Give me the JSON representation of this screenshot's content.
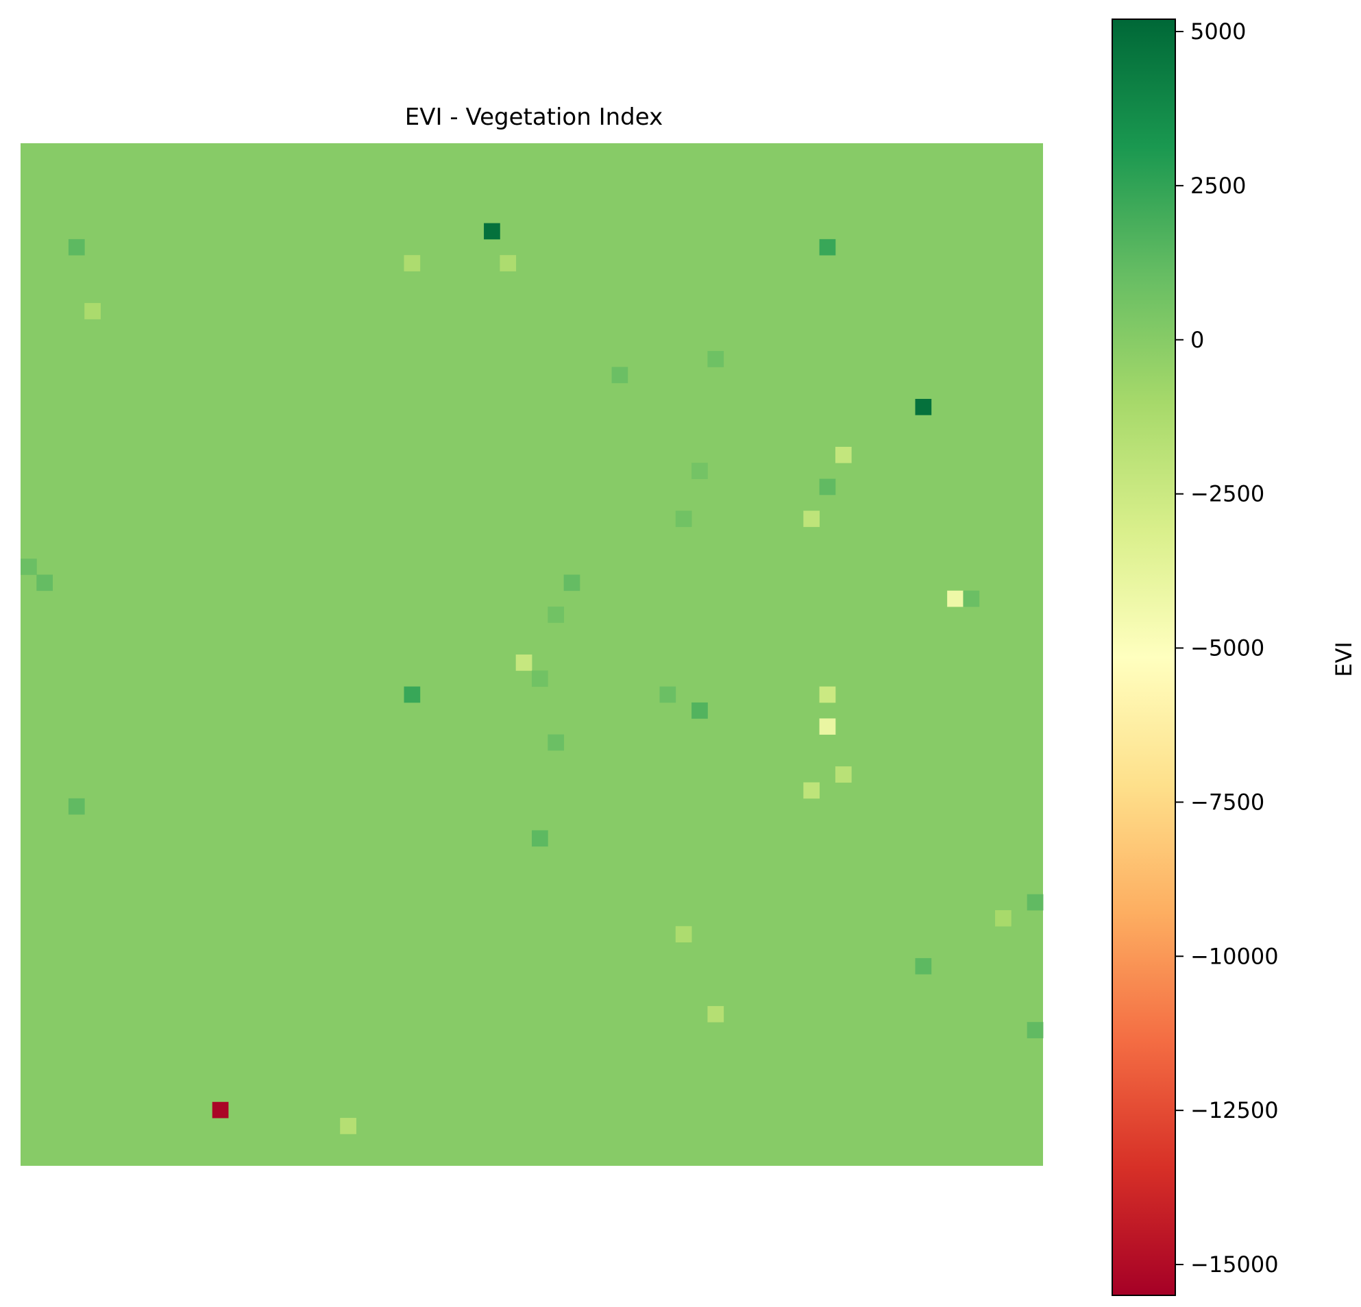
{
  "chart_data": {
    "type": "heatmap",
    "title": "EVI - Vegetation Index",
    "colormap": "RdYlGn",
    "colorbar": {
      "label": "EVI",
      "min": -15500,
      "max": 5200,
      "ticks": [
        5000,
        2500,
        0,
        -2500,
        -5000,
        -7500,
        -10000,
        -12500,
        -15000
      ],
      "tick_labels": [
        "5000",
        "2500",
        "0",
        "−2500",
        "−5000",
        "−7500",
        "−10000",
        "−12500",
        "−15000"
      ]
    },
    "grid": {
      "rows": 64,
      "cols": 64,
      "background_value": 0,
      "cells": [
        {
          "r": 5,
          "c": 29,
          "v": 4800
        },
        {
          "r": 6,
          "c": 50,
          "v": 2300
        },
        {
          "r": 16,
          "c": 56,
          "v": 4800
        },
        {
          "r": 34,
          "c": 24,
          "v": 2300
        },
        {
          "r": 60,
          "c": 12,
          "v": -15300
        },
        {
          "r": 28,
          "c": 58,
          "v": -4200
        },
        {
          "r": 36,
          "c": 50,
          "v": -4000
        },
        {
          "r": 34,
          "c": 50,
          "v": -2500
        },
        {
          "r": 32,
          "c": 31,
          "v": -2300
        },
        {
          "r": 19,
          "c": 51,
          "v": -2200
        },
        {
          "r": 23,
          "c": 49,
          "v": -2000
        },
        {
          "r": 40,
          "c": 49,
          "v": -2000
        },
        {
          "r": 39,
          "c": 51,
          "v": -1800
        },
        {
          "r": 54,
          "c": 43,
          "v": -1600
        },
        {
          "r": 61,
          "c": 20,
          "v": -1600
        },
        {
          "r": 7,
          "c": 24,
          "v": -1300
        },
        {
          "r": 7,
          "c": 30,
          "v": -1300
        },
        {
          "r": 10,
          "c": 4,
          "v": -1200
        },
        {
          "r": 49,
          "c": 41,
          "v": -1300
        },
        {
          "r": 48,
          "c": 61,
          "v": -1100
        },
        {
          "r": 41,
          "c": 3,
          "v": 1200
        },
        {
          "r": 6,
          "c": 3,
          "v": 1300
        },
        {
          "r": 26,
          "c": 0,
          "v": 900
        },
        {
          "r": 27,
          "c": 1,
          "v": 1100
        },
        {
          "r": 14,
          "c": 37,
          "v": 900
        },
        {
          "r": 13,
          "c": 43,
          "v": 800
        },
        {
          "r": 27,
          "c": 34,
          "v": 1100
        },
        {
          "r": 35,
          "c": 42,
          "v": 1600
        },
        {
          "r": 21,
          "c": 50,
          "v": 1200
        },
        {
          "r": 37,
          "c": 33,
          "v": 900
        },
        {
          "r": 43,
          "c": 32,
          "v": 1300
        },
        {
          "r": 51,
          "c": 56,
          "v": 1300
        },
        {
          "r": 55,
          "c": 63,
          "v": 1200
        },
        {
          "r": 47,
          "c": 63,
          "v": 1200
        },
        {
          "r": 28,
          "c": 59,
          "v": 900
        },
        {
          "r": 34,
          "c": 40,
          "v": 900
        },
        {
          "r": 29,
          "c": 33,
          "v": 700
        },
        {
          "r": 33,
          "c": 32,
          "v": 700
        },
        {
          "r": 23,
          "c": 41,
          "v": 700
        },
        {
          "r": 20,
          "c": 42,
          "v": 600
        }
      ]
    }
  }
}
